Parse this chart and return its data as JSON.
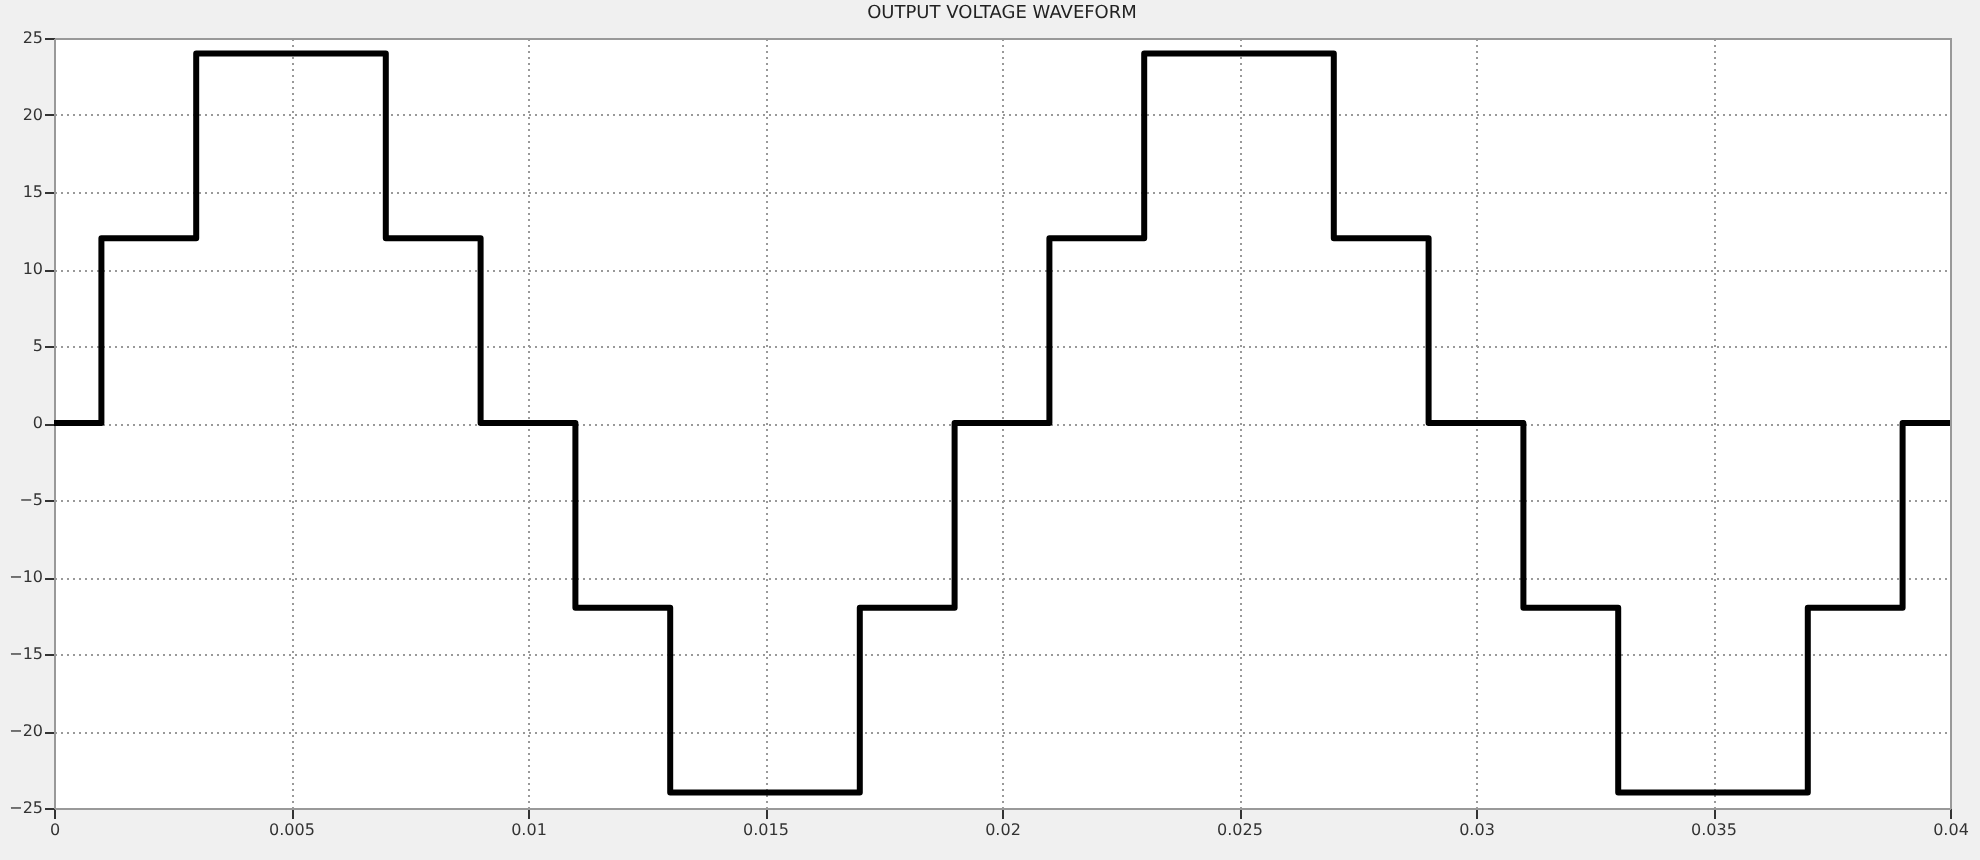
{
  "chart_data": {
    "type": "step",
    "title": "OUTPUT VOLTAGE WAVEFORM",
    "x": [
      0,
      0.001,
      0.003,
      0.007,
      0.009,
      0.011,
      0.013,
      0.017,
      0.019,
      0.021,
      0.023,
      0.027,
      0.029,
      0.031,
      0.033,
      0.037,
      0.039,
      0.04
    ],
    "series": [
      {
        "color": "#000000",
        "values": [
          0,
          12,
          24,
          12,
          0,
          -12,
          -24,
          -12,
          0,
          12,
          24,
          12,
          0,
          -12,
          -24,
          -12,
          0,
          0
        ]
      }
    ],
    "xlim": [
      0,
      0.04
    ],
    "xticks": [
      0,
      0.005,
      0.01,
      0.015,
      0.02,
      0.025,
      0.03,
      0.035,
      0.04
    ],
    "ylim": [
      -25,
      25
    ],
    "yticks": [
      -25,
      -20,
      -15,
      -10,
      -5,
      0,
      5,
      10,
      15,
      20,
      25
    ],
    "grid": true,
    "line_style": "solid"
  }
}
